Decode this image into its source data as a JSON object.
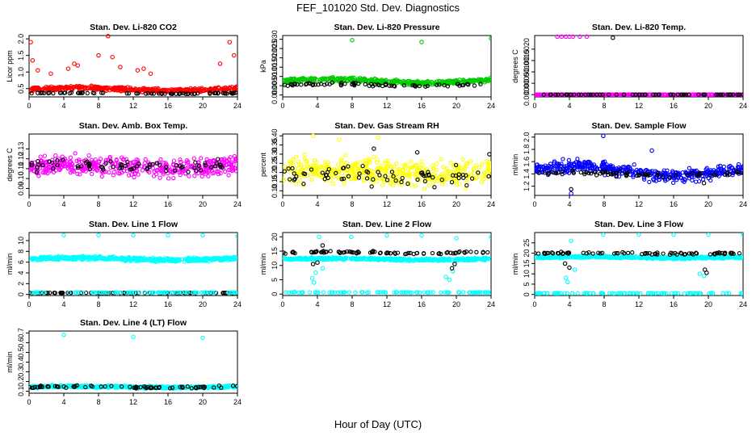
{
  "figure": {
    "title": "FEF_101020  Std. Dev. Diagnostics",
    "xlabel": "Hour of Day (UTC)"
  },
  "chart_data": [
    {
      "type": "scatter",
      "title": "Stan. Dev. Li-820 CO2",
      "ylabel": "Licor ppm",
      "xlim": [
        0,
        24
      ],
      "ylim": [
        0.25,
        2.1
      ],
      "xticks": [
        0,
        4,
        8,
        12,
        16,
        20,
        24
      ],
      "yticks": [
        {
          "v": 0.5,
          "l": "0.5"
        },
        {
          "v": 1.0,
          "l": "1.0"
        },
        {
          "v": 1.5,
          "l": "1.5"
        },
        {
          "v": 2.0,
          "l": "2.0"
        }
      ],
      "grid": false,
      "series": [
        {
          "color": "#ff0000",
          "n": 420,
          "base": 0.48,
          "spread": 0.18,
          "wave": 0.04,
          "outliers": [
            [
              0.2,
              1.9
            ],
            [
              0.4,
              1.35
            ],
            [
              1.0,
              1.05
            ],
            [
              2.5,
              0.95
            ],
            [
              4.5,
              1.1
            ],
            [
              5.2,
              1.25
            ],
            [
              5.6,
              1.2
            ],
            [
              8.0,
              1.5
            ],
            [
              9.1,
              2.08
            ],
            [
              9.6,
              1.45
            ],
            [
              10.5,
              1.15
            ],
            [
              12.5,
              1.05
            ],
            [
              13.2,
              1.1
            ],
            [
              14.0,
              0.95
            ],
            [
              22.0,
              1.25
            ],
            [
              23.1,
              1.9
            ],
            [
              23.6,
              1.5
            ]
          ]
        },
        {
          "color": "#000000",
          "n": 70,
          "base": 0.36,
          "spread": 0.04,
          "wave": 0.01,
          "outliers": []
        }
      ]
    },
    {
      "type": "scatter",
      "title": "Stan. Dev. Li-820 Pressure",
      "ylabel": "kPa",
      "xlim": [
        0,
        24
      ],
      "ylim": [
        -0.001,
        0.032
      ],
      "xticks": [
        0,
        4,
        8,
        12,
        16,
        20,
        24
      ],
      "yticks": [
        {
          "v": 0.0,
          "l": "0.000"
        },
        {
          "v": 0.005,
          "l": "0.005"
        },
        {
          "v": 0.01,
          "l": "0.010"
        },
        {
          "v": 0.015,
          "l": "0.015"
        },
        {
          "v": 0.02,
          "l": "0.020"
        },
        {
          "v": 0.025,
          "l": "0.025"
        },
        {
          "v": 0.03,
          "l": "0.030"
        }
      ],
      "grid": false,
      "series": [
        {
          "color": "#00cc00",
          "n": 420,
          "base": 0.0075,
          "spread": 0.0035,
          "wave": 0.001,
          "outliers": [
            [
              8.0,
              0.0295
            ],
            [
              16.0,
              0.0285
            ],
            [
              24.0,
              0.0305
            ]
          ]
        },
        {
          "color": "#000000",
          "n": 70,
          "base": 0.0055,
          "spread": 0.0025,
          "wave": 0.0005,
          "outliers": []
        }
      ]
    },
    {
      "type": "scatter",
      "title": "Stan. Dev. Li-820 Temp.",
      "ylabel": "degrees C",
      "xlim": [
        0,
        24
      ],
      "ylim": [
        -0.0001,
        0.0026
      ],
      "xticks": [
        0,
        4,
        8,
        12,
        16,
        20,
        24
      ],
      "yticks": [
        {
          "v": 0.0,
          "l": "0.0000"
        },
        {
          "v": 0.0005,
          "l": "0.0005"
        },
        {
          "v": 0.001,
          "l": "0.0010"
        },
        {
          "v": 0.0015,
          "l": "0.0015"
        },
        {
          "v": 0.002,
          "l": "0.0020"
        }
      ],
      "grid": false,
      "series": [
        {
          "color": "#ff00ff",
          "n": 420,
          "base": 0.0,
          "spread": 0.0,
          "wave": 0,
          "outliers": [
            [
              2.6,
              0.00255
            ],
            [
              3.1,
              0.00255
            ],
            [
              3.6,
              0.00255
            ],
            [
              4.0,
              0.00255
            ],
            [
              4.4,
              0.00255
            ],
            [
              5.2,
              0.00255
            ],
            [
              6.0,
              0.00255
            ]
          ]
        },
        {
          "color": "#000000",
          "n": 70,
          "base": 0.0,
          "spread": 0.0,
          "wave": 0,
          "outliers": [
            [
              9.0,
              0.0025
            ]
          ]
        }
      ]
    },
    {
      "type": "scatter",
      "title": "Stan. Dev. Amb. Box Temp.",
      "ylabel": "degrees C",
      "xlim": [
        0,
        24
      ],
      "ylim": [
        0.083,
        0.145
      ],
      "xticks": [
        0,
        4,
        8,
        12,
        16,
        20,
        24
      ],
      "yticks": [
        {
          "v": 0.09,
          "l": "0.09"
        },
        {
          "v": 0.1,
          "l": "0.10"
        },
        {
          "v": 0.11,
          "l": "0.11"
        },
        {
          "v": 0.12,
          "l": "0.12"
        },
        {
          "v": 0.13,
          "l": "0.13"
        }
      ],
      "grid": false,
      "series": [
        {
          "color": "#ff00ff",
          "n": 420,
          "base": 0.112,
          "spread": 0.028,
          "wave": 0.002,
          "outliers": []
        },
        {
          "color": "#000000",
          "n": 70,
          "base": 0.113,
          "spread": 0.018,
          "wave": 0.001,
          "outliers": []
        }
      ]
    },
    {
      "type": "scatter",
      "title": "Stan. Dev. Gas Stream RH",
      "ylabel": "percent",
      "xlim": [
        0,
        24
      ],
      "ylim": [
        0.075,
        0.41
      ],
      "xticks": [
        0,
        4,
        8,
        12,
        16,
        20,
        24
      ],
      "yticks": [
        {
          "v": 0.1,
          "l": "0.10"
        },
        {
          "v": 0.15,
          "l": "0.15"
        },
        {
          "v": 0.2,
          "l": "0.20"
        },
        {
          "v": 0.25,
          "l": "0.25"
        },
        {
          "v": 0.3,
          "l": "0.30"
        },
        {
          "v": 0.35,
          "l": "0.35"
        },
        {
          "v": 0.4,
          "l": "0.40"
        }
      ],
      "grid": false,
      "series": [
        {
          "color": "#ffff00",
          "n": 420,
          "base": 0.2,
          "spread": 0.2,
          "wave": 0.01,
          "outliers": [
            [
              3.5,
              0.4
            ],
            [
              6.5,
              0.38
            ],
            [
              11.0,
              0.39
            ]
          ]
        },
        {
          "color": "#000000",
          "n": 70,
          "base": 0.18,
          "spread": 0.16,
          "wave": 0.01,
          "outliers": [
            [
              10.5,
              0.33
            ],
            [
              15.5,
              0.31
            ],
            [
              23.8,
              0.3
            ]
          ]
        }
      ]
    },
    {
      "type": "scatter",
      "title": "Stan. Dev. Sample Flow",
      "ylabel": "ml/min",
      "xlim": [
        0,
        24
      ],
      "ylim": [
        1.05,
        2.05
      ],
      "xticks": [
        0,
        4,
        8,
        12,
        16,
        20,
        24
      ],
      "yticks": [
        {
          "v": 1.2,
          "l": "1.2"
        },
        {
          "v": 1.4,
          "l": "1.4"
        },
        {
          "v": 1.6,
          "l": "1.6"
        },
        {
          "v": 1.8,
          "l": "1.8"
        },
        {
          "v": 2.0,
          "l": "2.0"
        }
      ],
      "grid": false,
      "series": [
        {
          "color": "#0000ff",
          "n": 420,
          "base": 1.45,
          "spread": 0.3,
          "wave": 0.08,
          "outliers": [
            [
              7.9,
              2.02
            ],
            [
              4.2,
              1.08
            ],
            [
              13.5,
              1.78
            ]
          ]
        },
        {
          "color": "#000000",
          "n": 70,
          "base": 1.4,
          "spread": 0.12,
          "wave": 0.02,
          "outliers": [
            [
              4.2,
              1.15
            ],
            [
              19.5,
              1.25
            ]
          ]
        }
      ]
    },
    {
      "type": "scatter",
      "title": "Stan. Dev. Line 1 Flow",
      "ylabel": "ml/min",
      "xlim": [
        0,
        24
      ],
      "ylim": [
        -0.2,
        11.5
      ],
      "xticks": [
        0,
        4,
        8,
        12,
        16,
        20,
        24
      ],
      "yticks": [
        {
          "v": 0,
          "l": "0"
        },
        {
          "v": 2,
          "l": "2"
        },
        {
          "v": 4,
          "l": "4"
        },
        {
          "v": 6,
          "l": "6"
        },
        {
          "v": 8,
          "l": "8"
        },
        {
          "v": 10,
          "l": "10"
        }
      ],
      "grid": false,
      "series": [
        {
          "color": "#00ffff",
          "n": 520,
          "base": 6.6,
          "spread": 0.9,
          "wave": 0.2,
          "outliers": [
            [
              4.0,
              11.0
            ],
            [
              8.0,
              11.0
            ],
            [
              12.0,
              11.0
            ],
            [
              16.0,
              11.0
            ],
            [
              20.0,
              11.0
            ],
            [
              24.0,
              10.8
            ]
          ]
        },
        {
          "color": "#000000",
          "n": 90,
          "base": 0.3,
          "spread": 0.05,
          "wave": 0,
          "outliers": []
        },
        {
          "color": "#00ffff",
          "n": 90,
          "base": 0.35,
          "spread": 0.05,
          "wave": 0,
          "outliers": []
        }
      ]
    },
    {
      "type": "scatter",
      "title": "Stan. Dev. Line 2 Flow",
      "ylabel": "ml/min",
      "xlim": [
        0,
        24
      ],
      "ylim": [
        -0.5,
        21.5
      ],
      "xticks": [
        0,
        4,
        8,
        12,
        16,
        20,
        24
      ],
      "yticks": [
        {
          "v": 0,
          "l": "0"
        },
        {
          "v": 5,
          "l": "5"
        },
        {
          "v": 10,
          "l": "10"
        },
        {
          "v": 15,
          "l": "15"
        },
        {
          "v": 20,
          "l": "20"
        }
      ],
      "grid": false,
      "series": [
        {
          "color": "#00ffff",
          "n": 480,
          "base": 12.2,
          "spread": 1.2,
          "wave": 0.2,
          "outliers": [
            [
              3.4,
              5.5
            ],
            [
              3.6,
              4.0
            ],
            [
              3.8,
              7.5
            ],
            [
              4.2,
              20.0
            ],
            [
              4.6,
              9.0
            ],
            [
              7.9,
              20.0
            ],
            [
              12.0,
              20.5
            ],
            [
              16.0,
              20.5
            ],
            [
              18.8,
              6.0
            ],
            [
              19.2,
              5.0
            ],
            [
              19.6,
              8.0
            ],
            [
              20.0,
              19.5
            ],
            [
              24.0,
              20.0
            ]
          ]
        },
        {
          "color": "#000000",
          "n": 80,
          "base": 14.5,
          "spread": 1.2,
          "wave": 0.2,
          "outliers": [
            [
              3.5,
              10.5
            ],
            [
              4.0,
              11.0
            ],
            [
              4.6,
              17.0
            ],
            [
              19.5,
              9.0
            ],
            [
              19.8,
              10.5
            ]
          ]
        },
        {
          "color": "#00ffff",
          "n": 90,
          "base": 0.6,
          "spread": 0.3,
          "wave": 0,
          "outliers": []
        }
      ]
    },
    {
      "type": "scatter",
      "title": "Stan. Dev. Line 3 Flow",
      "ylabel": "ml/min",
      "xlim": [
        0,
        24
      ],
      "ylim": [
        -0.5,
        30
      ],
      "xticks": [
        0,
        4,
        8,
        12,
        16,
        20,
        24
      ],
      "yticks": [
        {
          "v": 0,
          "l": "0"
        },
        {
          "v": 5,
          "l": "5"
        },
        {
          "v": 10,
          "l": "10"
        },
        {
          "v": 15,
          "l": "15"
        },
        {
          "v": 20,
          "l": "20"
        },
        {
          "v": 25,
          "l": "25"
        }
      ],
      "grid": false,
      "series": [
        {
          "color": "#00ffff",
          "n": 480,
          "base": 18.0,
          "spread": 1.5,
          "wave": 0.3,
          "outliers": [
            [
              3.6,
              8.0
            ],
            [
              3.8,
              6.0
            ],
            [
              4.2,
              26.0
            ],
            [
              4.6,
              12.0
            ],
            [
              7.9,
              29.0
            ],
            [
              12.0,
              29.0
            ],
            [
              16.0,
              29.0
            ],
            [
              19.0,
              10.0
            ],
            [
              19.5,
              9.0
            ],
            [
              20.0,
              29.0
            ],
            [
              24.0,
              29.0
            ]
          ]
        },
        {
          "color": "#000000",
          "n": 80,
          "base": 20.0,
          "spread": 1.5,
          "wave": 0.3,
          "outliers": [
            [
              3.5,
              15.0
            ],
            [
              4.0,
              13.0
            ],
            [
              19.6,
              12.0
            ],
            [
              19.8,
              10.5
            ]
          ]
        },
        {
          "color": "#00ffff",
          "n": 90,
          "base": 0.6,
          "spread": 0.3,
          "wave": 0,
          "outliers": []
        }
      ]
    },
    {
      "type": "scatter",
      "title": "Stan. Dev. Line 4 (LT) Flow",
      "ylabel": "ml/min",
      "xlim": [
        0,
        24
      ],
      "ylim": [
        0.08,
        0.72
      ],
      "xticks": [
        0,
        4,
        8,
        12,
        16,
        20,
        24
      ],
      "yticks": [
        {
          "v": 0.1,
          "l": "0.1"
        },
        {
          "v": 0.2,
          "l": "0.2"
        },
        {
          "v": 0.3,
          "l": "0.3"
        },
        {
          "v": 0.4,
          "l": "0.4"
        },
        {
          "v": 0.5,
          "l": "0.5"
        },
        {
          "v": 0.6,
          "l": "0.6"
        },
        {
          "v": 0.7,
          "l": "0.7"
        }
      ],
      "grid": false,
      "series": [
        {
          "color": "#00ffff",
          "n": 480,
          "base": 0.145,
          "spread": 0.035,
          "wave": 0.005,
          "outliers": [
            [
              4.0,
              0.68
            ],
            [
              12.0,
              0.66
            ],
            [
              20.0,
              0.65
            ]
          ]
        },
        {
          "color": "#000000",
          "n": 70,
          "base": 0.145,
          "spread": 0.04,
          "wave": 0.005,
          "outliers": []
        }
      ]
    }
  ]
}
